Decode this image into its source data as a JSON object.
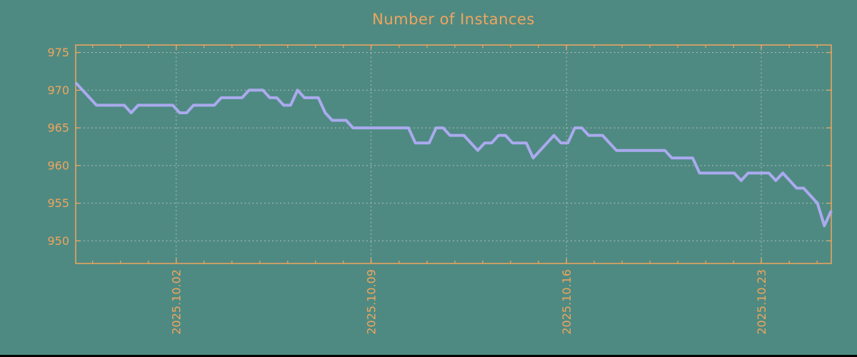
{
  "title": "Number of Instances",
  "colors": {
    "background": "#4e8a82",
    "accent_orange": "#f0a55e",
    "series_line": "#aaaaee",
    "gridline": "#bcc2bc",
    "bottom_edge": "#000000"
  },
  "chart_data": {
    "type": "line",
    "title": "Number of Instances",
    "grid": true,
    "legend_position": "none",
    "ylim": [
      947,
      976
    ],
    "y_ticks": [
      950,
      955,
      960,
      965,
      970,
      975
    ],
    "x_ticks": [
      {
        "label": "2025.10.02",
        "index": 14.5
      },
      {
        "label": "2025.10.09",
        "index": 42.6
      },
      {
        "label": "2025.10.16",
        "index": 70.8
      },
      {
        "label": "2025.10.23",
        "index": 98.9
      }
    ],
    "x_minor_tick_step_index": 4.02,
    "series": [
      {
        "name": "instances",
        "color": "#aaaaee",
        "values": [
          971,
          970,
          969,
          968,
          968,
          968,
          968,
          968,
          967,
          968,
          968,
          968,
          968,
          968,
          968,
          967,
          967,
          968,
          968,
          968,
          968,
          969,
          969,
          969,
          969,
          970,
          970,
          970,
          969,
          969,
          968,
          968,
          970,
          969,
          969,
          969,
          967,
          966,
          966,
          966,
          965,
          965,
          965,
          965,
          965,
          965,
          965,
          965,
          965,
          963,
          963,
          963,
          965,
          965,
          964,
          964,
          964,
          963,
          962,
          963,
          963,
          964,
          964,
          963,
          963,
          963,
          961,
          962,
          963,
          964,
          963,
          963,
          965,
          965,
          964,
          964,
          964,
          963,
          962,
          962,
          962,
          962,
          962,
          962,
          962,
          962,
          961,
          961,
          961,
          961,
          959,
          959,
          959,
          959,
          959,
          959,
          958,
          959,
          959,
          959,
          959,
          958,
          959,
          958,
          957,
          957,
          956,
          955,
          952,
          954
        ]
      }
    ]
  }
}
